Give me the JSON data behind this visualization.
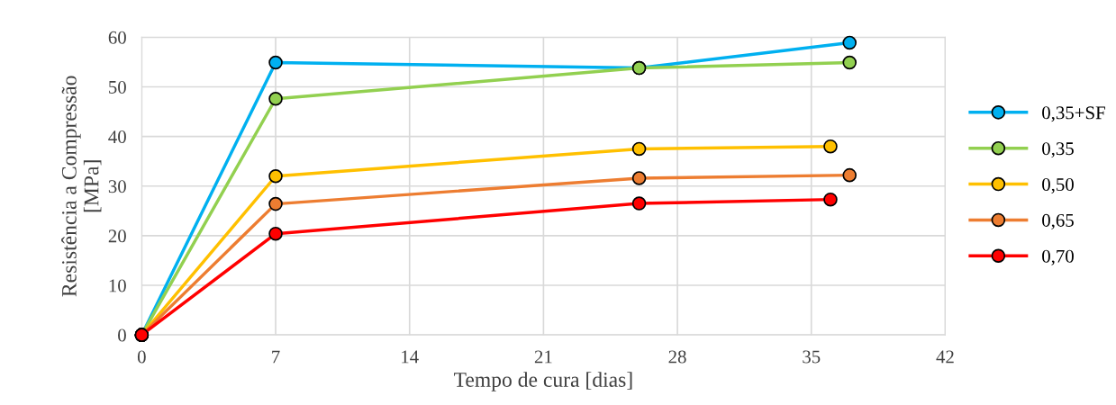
{
  "chart_data": {
    "type": "line",
    "xlabel": "Tempo de cura [dias]",
    "ylabel": "Resistência a Compressão\n[MPa]",
    "xlim": [
      0,
      42
    ],
    "xticks": [
      0,
      7,
      14,
      21,
      28,
      35,
      42
    ],
    "ylim": [
      0,
      60
    ],
    "yticks": [
      0,
      10,
      20,
      30,
      40,
      50,
      60
    ],
    "grid": true,
    "legend": "right",
    "marker": "circle",
    "line_style": "solid",
    "series": [
      {
        "name": "0,35+SF",
        "color": "#00b0f0",
        "x": [
          0,
          7,
          26,
          37
        ],
        "values": [
          0,
          54.9,
          53.8,
          58.9
        ]
      },
      {
        "name": "0,35",
        "color": "#92d050",
        "x": [
          0,
          7,
          26,
          37
        ],
        "values": [
          0,
          47.6,
          53.8,
          54.9
        ]
      },
      {
        "name": "0,50",
        "color": "#ffc000",
        "x": [
          0,
          7,
          26,
          36
        ],
        "values": [
          0,
          32.0,
          37.5,
          38.0
        ]
      },
      {
        "name": "0,65",
        "color": "#ed7d31",
        "x": [
          0,
          7,
          26,
          37
        ],
        "values": [
          0,
          26.4,
          31.6,
          32.2
        ]
      },
      {
        "name": "0,70",
        "color": "#ff0000",
        "x": [
          0,
          7,
          26,
          36
        ],
        "values": [
          0,
          20.4,
          26.5,
          27.3
        ]
      }
    ]
  }
}
